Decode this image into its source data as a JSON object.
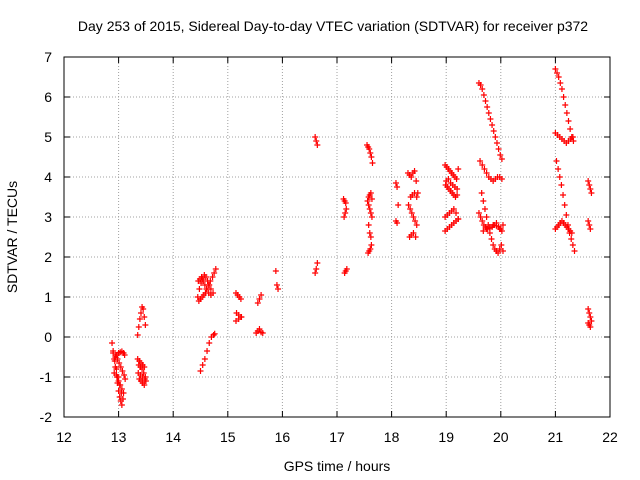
{
  "chart_data": {
    "type": "scatter",
    "title": "Day 253 of 2015, Sidereal Day-to-day VTEC variation (SDTVAR) for receiver p372",
    "xlabel": "GPS time / hours",
    "ylabel": "SDTVAR / TECUs",
    "xlim": [
      12,
      22
    ],
    "ylim": [
      -2,
      7
    ],
    "xticks": [
      "12",
      "13",
      "14",
      "15",
      "16",
      "17",
      "18",
      "19",
      "20",
      "21",
      "22"
    ],
    "yticks": [
      "-2",
      "-1",
      "0",
      "1",
      "2",
      "3",
      "4",
      "5",
      "6",
      "7"
    ],
    "grid": true,
    "marker": "+",
    "color": "#ff0000",
    "series": [
      {
        "name": "SDTVAR",
        "x": [
          12.88,
          12.9,
          12.92,
          12.94,
          12.96,
          12.98,
          13.0,
          13.02,
          13.04,
          13.06,
          12.9,
          12.93,
          12.96,
          12.99,
          13.02,
          13.05,
          13.08,
          12.95,
          12.98,
          13.01,
          13.04,
          13.07,
          13.1,
          13.12,
          12.92,
          12.97,
          13.0,
          13.03,
          13.06,
          13.09,
          12.94,
          12.97,
          13.0,
          13.03,
          13.06,
          13.09,
          13.11,
          13.35,
          13.37,
          13.39,
          13.41,
          13.43,
          13.45,
          13.47,
          13.49,
          13.37,
          13.4,
          13.43,
          13.46,
          13.49,
          13.38,
          13.41,
          13.44,
          13.47,
          13.5,
          13.35,
          13.38,
          13.41,
          13.44,
          13.47,
          13.36,
          13.4,
          13.44,
          13.48,
          14.45,
          14.48,
          14.51,
          14.54,
          14.57,
          14.6,
          14.63,
          14.66,
          14.69,
          14.47,
          14.5,
          14.53,
          14.56,
          14.59,
          14.62,
          14.65,
          14.68,
          14.72,
          14.75,
          14.78,
          14.5,
          14.54,
          14.58,
          14.62,
          14.66,
          14.7,
          14.74,
          14.76,
          14.46,
          14.49,
          14.52,
          14.55,
          14.58,
          14.61,
          14.65,
          14.69,
          14.73,
          15.15,
          15.18,
          15.21,
          15.24,
          15.16,
          15.2,
          15.24,
          15.15,
          15.2,
          15.25,
          15.52,
          15.55,
          15.58,
          15.61,
          15.64,
          15.55,
          15.58,
          15.61,
          15.88,
          15.9,
          15.92,
          16.6,
          16.62,
          16.64,
          16.6,
          16.62,
          16.64,
          17.12,
          17.14,
          17.16,
          17.13,
          17.15,
          17.17,
          17.14,
          17.16,
          17.18,
          17.55,
          17.57,
          17.59,
          17.61,
          17.63,
          17.65,
          17.56,
          17.58,
          17.6,
          17.62,
          17.64,
          17.58,
          17.6,
          17.62,
          17.57,
          17.59,
          17.61,
          17.63,
          17.58,
          17.6,
          17.62,
          17.64,
          18.08,
          18.1,
          18.12,
          18.08,
          18.1,
          18.3,
          18.33,
          18.36,
          18.39,
          18.42,
          18.45,
          18.48,
          18.31,
          18.34,
          18.37,
          18.4,
          18.43,
          18.46,
          18.33,
          18.36,
          18.4,
          18.44,
          18.35,
          18.38,
          18.42,
          18.46,
          18.98,
          19.01,
          19.04,
          19.07,
          19.1,
          19.13,
          19.16,
          19.19,
          19.22,
          18.99,
          19.02,
          19.05,
          19.08,
          19.11,
          19.14,
          19.17,
          19.2,
          18.98,
          19.02,
          19.06,
          19.1,
          19.14,
          19.18,
          19.22,
          18.98,
          19.02,
          19.06,
          19.1,
          19.14,
          19.18,
          19.22,
          19.0,
          19.04,
          19.08,
          19.12,
          19.16,
          19.2,
          19.6,
          19.63,
          19.66,
          19.69,
          19.72,
          19.75,
          19.78,
          19.81,
          19.84,
          19.87,
          19.9,
          19.93,
          19.96,
          19.99,
          20.02,
          19.62,
          19.66,
          19.7,
          19.74,
          19.78,
          19.82,
          19.86,
          19.9,
          19.94,
          19.98,
          20.02,
          19.65,
          19.68,
          19.71,
          19.74,
          19.77,
          19.8,
          19.83,
          19.86,
          19.89,
          19.92,
          19.95,
          19.98,
          20.01,
          20.04,
          19.6,
          19.63,
          19.66,
          19.69,
          19.72,
          19.76,
          19.8,
          19.84,
          19.88,
          19.92,
          19.96,
          20.0,
          20.04,
          19.68,
          19.74,
          19.8,
          19.86,
          19.92,
          19.98,
          20.02,
          21.0,
          21.03,
          21.06,
          21.09,
          21.12,
          21.15,
          21.18,
          21.21,
          21.24,
          21.27,
          21.3,
          21.33,
          21.0,
          21.04,
          21.08,
          21.12,
          21.16,
          21.2,
          21.24,
          21.28,
          21.32,
          21.02,
          21.05,
          21.08,
          21.11,
          21.14,
          21.17,
          21.2,
          21.23,
          21.26,
          21.29,
          21.32,
          21.35,
          21.0,
          21.03,
          21.06,
          21.09,
          21.12,
          21.15,
          21.18,
          21.21,
          21.24,
          21.27,
          21.3,
          21.6,
          21.62,
          21.64,
          21.66,
          21.6,
          21.62,
          21.64,
          21.6,
          21.62,
          21.64,
          21.66,
          21.6,
          21.62,
          21.64
        ],
        "y": [
          -0.15,
          -0.35,
          -0.55,
          -0.75,
          -0.95,
          -1.15,
          -1.35,
          -1.5,
          -1.6,
          -1.7,
          -0.4,
          -0.6,
          -0.8,
          -1.0,
          -1.2,
          -1.4,
          -1.55,
          -0.45,
          -0.55,
          -0.65,
          -0.75,
          -0.85,
          -0.95,
          -1.05,
          -0.9,
          -1.0,
          -1.1,
          -1.2,
          -1.3,
          -1.4,
          -0.5,
          -0.45,
          -0.4,
          -0.38,
          -0.36,
          -0.4,
          -0.45,
          0.05,
          0.25,
          0.45,
          0.6,
          0.75,
          0.7,
          0.5,
          0.3,
          -0.7,
          -0.75,
          -0.8,
          -0.9,
          -1.0,
          -1.05,
          -1.1,
          -1.15,
          -1.2,
          -1.1,
          -0.55,
          -0.6,
          -0.65,
          -0.7,
          -0.75,
          -0.9,
          -0.95,
          -1.0,
          -1.05,
          1.0,
          1.2,
          1.35,
          1.45,
          1.55,
          1.5,
          1.4,
          1.3,
          1.2,
          0.9,
          0.95,
          1.0,
          1.05,
          1.1,
          1.2,
          1.3,
          1.4,
          1.5,
          1.6,
          1.7,
          -0.85,
          -0.7,
          -0.55,
          -0.35,
          -0.15,
          0.0,
          0.05,
          0.08,
          1.4,
          1.45,
          1.5,
          1.4,
          1.3,
          1.2,
          1.1,
          1.05,
          1.1,
          1.1,
          1.05,
          1.0,
          0.95,
          0.6,
          0.55,
          0.5,
          0.4,
          0.45,
          0.5,
          0.1,
          0.15,
          0.2,
          0.12,
          0.1,
          0.85,
          0.95,
          1.05,
          1.65,
          1.3,
          1.2,
          5.0,
          4.9,
          4.8,
          1.6,
          1.7,
          1.85,
          3.45,
          3.4,
          3.35,
          3.0,
          3.1,
          3.2,
          1.6,
          1.65,
          1.7,
          4.8,
          4.75,
          4.7,
          4.6,
          4.5,
          4.35,
          3.4,
          3.3,
          3.2,
          3.1,
          3.0,
          2.8,
          2.6,
          2.5,
          2.1,
          2.15,
          2.2,
          2.3,
          3.5,
          3.55,
          3.6,
          3.45,
          3.85,
          3.75,
          3.3,
          2.9,
          2.85,
          4.1,
          4.05,
          4.0,
          4.1,
          4.15,
          3.9,
          3.6,
          3.3,
          3.2,
          3.1,
          3.0,
          2.9,
          2.8,
          2.5,
          2.55,
          2.6,
          2.5,
          3.5,
          3.55,
          3.6,
          3.5,
          4.3,
          4.25,
          4.2,
          4.15,
          4.1,
          4.05,
          4.0,
          3.95,
          4.2,
          3.8,
          3.75,
          3.7,
          3.65,
          3.6,
          3.55,
          3.5,
          3.55,
          3.0,
          3.05,
          3.1,
          3.15,
          3.2,
          3.1,
          2.95,
          2.65,
          2.7,
          2.75,
          2.8,
          2.85,
          2.9,
          2.95,
          3.9,
          3.95,
          3.85,
          3.8,
          3.75,
          3.7,
          6.35,
          6.3,
          6.2,
          6.05,
          5.9,
          5.75,
          5.6,
          5.45,
          5.3,
          5.15,
          5.0,
          4.85,
          4.7,
          4.55,
          4.45,
          4.4,
          4.3,
          4.2,
          4.1,
          4.0,
          3.95,
          3.9,
          3.95,
          4.0,
          4.0,
          3.95,
          3.6,
          3.4,
          3.2,
          3.0,
          2.8,
          2.6,
          2.45,
          2.3,
          2.2,
          2.15,
          2.1,
          2.2,
          2.3,
          2.15,
          3.1,
          3.0,
          2.9,
          2.8,
          2.75,
          2.7,
          2.72,
          2.75,
          2.8,
          2.78,
          2.75,
          2.7,
          2.8,
          2.65,
          2.7,
          2.75,
          2.8,
          2.85,
          2.7,
          2.65,
          6.7,
          6.6,
          6.5,
          6.35,
          6.2,
          6.0,
          5.8,
          5.6,
          5.4,
          5.2,
          5.0,
          4.9,
          5.1,
          5.05,
          5.0,
          4.95,
          4.9,
          4.85,
          4.9,
          4.95,
          5.0,
          4.4,
          4.2,
          4.0,
          3.8,
          3.55,
          3.3,
          3.05,
          2.8,
          2.6,
          2.45,
          2.3,
          2.15,
          2.7,
          2.75,
          2.8,
          2.85,
          2.9,
          2.85,
          2.8,
          2.75,
          2.7,
          2.65,
          2.6,
          3.9,
          3.8,
          3.7,
          3.6,
          2.9,
          2.8,
          2.7,
          0.7,
          0.6,
          0.5,
          0.4,
          0.35,
          0.3,
          0.25
        ]
      }
    ]
  }
}
